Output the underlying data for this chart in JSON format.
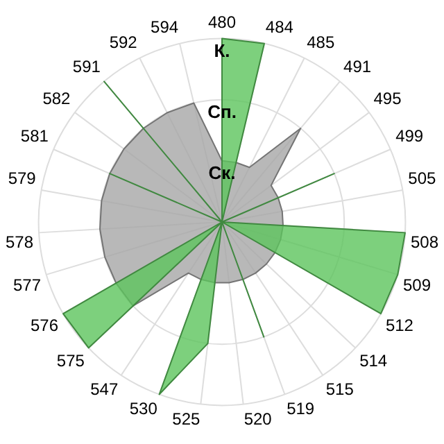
{
  "chart_data": {
    "type": "radar",
    "categories": [
      "480",
      "484",
      "485",
      "491",
      "495",
      "499",
      "505",
      "508",
      "509",
      "512",
      "514",
      "515",
      "519",
      "520",
      "525",
      "530",
      "547",
      "575",
      "576",
      "577",
      "578",
      "579",
      "581",
      "582",
      "591",
      "592",
      "594"
    ],
    "series": [
      {
        "color": "#a6a6a6",
        "values": [
          1,
          1,
          1,
          2,
          1,
          1,
          1,
          1,
          1,
          1,
          1,
          1,
          1,
          1,
          1,
          1,
          1,
          2,
          2,
          2,
          2,
          2,
          2,
          2,
          2,
          2,
          2
        ]
      },
      {
        "color": "#5cc45c",
        "values": [
          3,
          3,
          0,
          0,
          0,
          2,
          0,
          3,
          3,
          3,
          0,
          0,
          2,
          0,
          2,
          3,
          0,
          3,
          3,
          0,
          0,
          0,
          2,
          0,
          3,
          0,
          0
        ]
      }
    ],
    "ylim": [
      0,
      3
    ],
    "yticks": [
      {
        "value": 1,
        "label": "Ск."
      },
      {
        "value": 2,
        "label": "Сп."
      },
      {
        "value": 3,
        "label": "К."
      }
    ],
    "grid": true,
    "marker": "none",
    "legend": false
  }
}
